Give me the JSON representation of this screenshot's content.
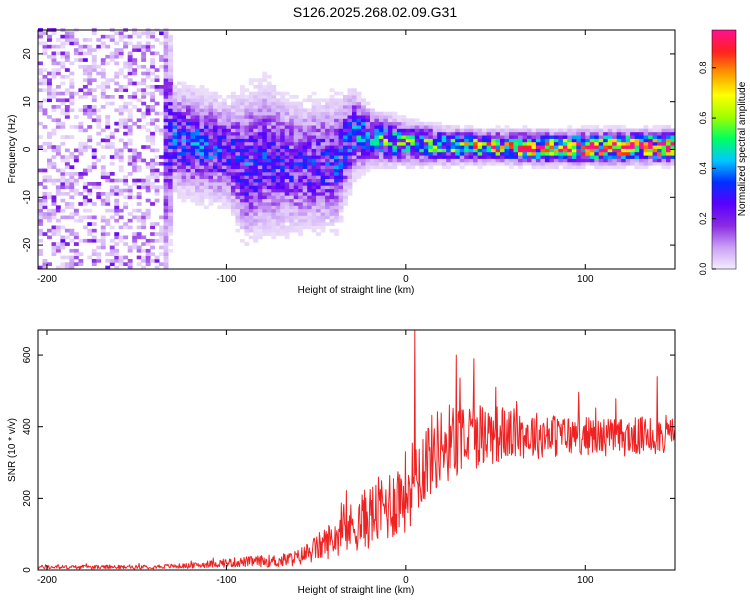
{
  "title": "S126.2025.268.02.09.G31",
  "chart_data": [
    {
      "type": "heatmap",
      "xlabel": "Height of straight line (km)",
      "ylabel": "Frequency (Hz)",
      "xlim": [
        -205,
        150
      ],
      "ylim": [
        -25,
        25
      ],
      "xticks": [
        -200,
        -100,
        0,
        100
      ],
      "yticks": [
        -20,
        -10,
        0,
        10,
        20
      ],
      "colorbar": {
        "label": "Normalized spectral amplitude",
        "range": [
          0,
          0.95
        ],
        "ticks": [
          0.0,
          0.2,
          0.4,
          0.6,
          0.8
        ],
        "tick_labels": [
          "0.0",
          "0.2",
          "0.4",
          "0.6",
          "0.8"
        ],
        "colors": [
          "#f5eefc",
          "#c9a0f5",
          "#8a2be2",
          "#5a00ff",
          "#0030ff",
          "#00c8ff",
          "#00ff60",
          "#a0ff00",
          "#ffff00",
          "#ff9900",
          "#ff2020",
          "#ff1090"
        ]
      },
      "profile": {
        "x": [
          -205,
          -140,
          -130,
          -120,
          -100,
          -90,
          -80,
          -60,
          -40,
          -30,
          -20,
          0,
          20,
          40,
          60,
          80,
          100,
          120,
          150
        ],
        "center_hz": [
          0,
          0,
          2,
          1,
          -1,
          -4,
          -2,
          -4,
          -3,
          3,
          2,
          1,
          0.5,
          0.3,
          0.2,
          0,
          0.1,
          0.2,
          0.3
        ],
        "spread_hz": [
          25,
          25,
          5,
          5,
          5,
          7,
          7,
          6,
          6,
          4,
          2.5,
          2,
          1.7,
          1.5,
          1.5,
          1.5,
          1.5,
          1.5,
          1.5
        ],
        "peak_amplitude": [
          0.12,
          0.12,
          0.3,
          0.33,
          0.28,
          0.3,
          0.28,
          0.25,
          0.3,
          0.35,
          0.45,
          0.5,
          0.55,
          0.65,
          0.75,
          0.85,
          0.9,
          0.92,
          0.92
        ]
      }
    },
    {
      "type": "line",
      "xlabel": "Height of straight line (km)",
      "ylabel": "SNR (10 * v/v)",
      "xlim": [
        -205,
        150
      ],
      "ylim": [
        0,
        670
      ],
      "xticks": [
        -200,
        -100,
        0,
        100
      ],
      "yticks": [
        0,
        200,
        400,
        600
      ],
      "color": "#ee2222",
      "trend": {
        "x": [
          -205,
          -150,
          -120,
          -100,
          -80,
          -70,
          -60,
          -50,
          -40,
          -30,
          -20,
          -10,
          0,
          10,
          20,
          40,
          60,
          80,
          100,
          120,
          150
        ],
        "y": [
          8,
          8,
          12,
          20,
          25,
          25,
          35,
          60,
          90,
          120,
          150,
          180,
          220,
          300,
          350,
          380,
          380,
          375,
          375,
          370,
          380
        ]
      },
      "spread": {
        "x": [
          -205,
          -150,
          -120,
          -100,
          -80,
          -60,
          -40,
          -20,
          0,
          10,
          30,
          60,
          100,
          150
        ],
        "y": [
          6,
          6,
          8,
          14,
          18,
          25,
          60,
          100,
          130,
          130,
          120,
          80,
          60,
          60
        ]
      },
      "peaks": [
        {
          "x": 5,
          "y": 670
        },
        {
          "x": 28,
          "y": 600
        },
        {
          "x": 38,
          "y": 590
        },
        {
          "x": 50,
          "y": 510
        },
        {
          "x": 140,
          "y": 540
        }
      ]
    }
  ]
}
